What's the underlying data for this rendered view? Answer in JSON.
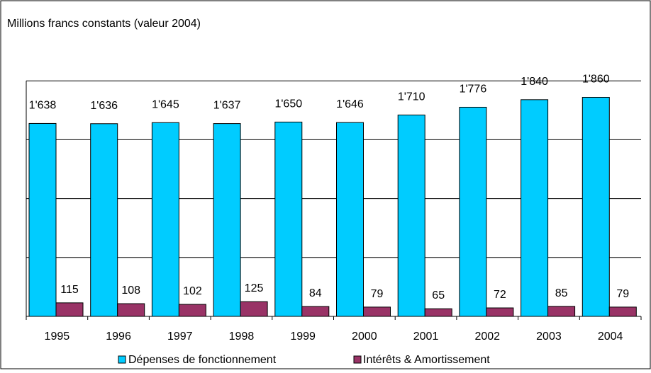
{
  "chart_data": {
    "type": "bar",
    "title": "",
    "unit_label": "Millions francs constants (valeur 2004)",
    "xlabel": "",
    "ylabel": "",
    "categories": [
      "1995",
      "1996",
      "1997",
      "1998",
      "1999",
      "2000",
      "2001",
      "2002",
      "2003",
      "2004"
    ],
    "series": [
      {
        "name": "Dépenses de fonctionnement",
        "color": "#00CCFF",
        "values": [
          1638,
          1636,
          1645,
          1637,
          1650,
          1646,
          1710,
          1776,
          1840,
          1860
        ],
        "labels": [
          "1'638",
          "1'636",
          "1'645",
          "1'637",
          "1'650",
          "1'646",
          "1'710",
          "1'776",
          "1'840",
          "1'860"
        ]
      },
      {
        "name": "Intérêts & Amortissement",
        "color": "#993366",
        "values": [
          115,
          108,
          102,
          125,
          84,
          79,
          65,
          72,
          85,
          79
        ],
        "labels": [
          "115",
          "108",
          "102",
          "125",
          "84",
          "79",
          "65",
          "72",
          "85",
          "79"
        ]
      }
    ],
    "ylim": [
      0,
      2000
    ],
    "gridlines": [
      500,
      1000,
      1500,
      2000
    ],
    "grid": true,
    "legend_position": "bottom",
    "y_tick_labels_shown": false
  }
}
